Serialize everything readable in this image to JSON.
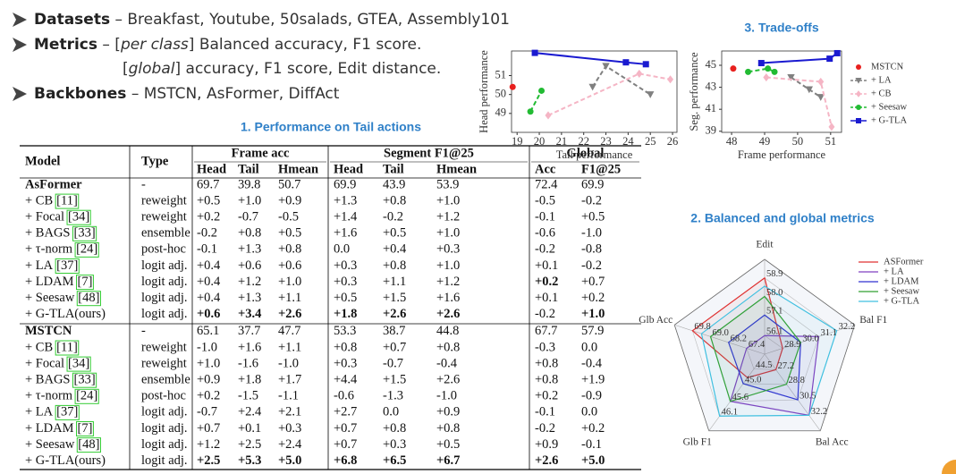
{
  "bullets": [
    {
      "bullet": true,
      "parts": [
        {
          "text": "Datasets",
          "style": "bold"
        },
        {
          "text": " – Breakfast, Youtube, 50salads, GTEA, Assembly101"
        }
      ]
    },
    {
      "bullet": true,
      "parts": [
        {
          "text": "Metrics",
          "style": "bold"
        },
        {
          "text": " – ["
        },
        {
          "text": "per class",
          "style": "italic"
        },
        {
          "text": "] Balanced accuracy, F1 score."
        }
      ]
    },
    {
      "bullet": false,
      "parts": [
        {
          "text": "["
        },
        {
          "text": "global",
          "style": "italic"
        },
        {
          "text": "] accuracy, F1 score, Edit distance."
        }
      ]
    },
    {
      "bullet": true,
      "parts": [
        {
          "text": "Backbones",
          "style": "bold"
        },
        {
          "text": " – MSTCN, AsFormer, DiffAct"
        }
      ]
    }
  ],
  "table": {
    "title": "1. Performance on Tail actions",
    "header": [
      "Model",
      "Type"
    ],
    "groups": [
      "Frame acc",
      "Segment F1@25",
      "Global"
    ],
    "subheader": [
      "Head",
      "Tail",
      "Hmean",
      "Head",
      "Tail",
      "Hmean",
      "Acc",
      "F1@25"
    ],
    "muted_columns": [
      6,
      7
    ],
    "rows": [
      {
        "model": "AsFormer",
        "model_bold": true,
        "type": "-",
        "values": [
          "69.7",
          "39.8",
          "50.7",
          "69.9",
          "43.9",
          "53.9",
          "72.4",
          "69.9"
        ]
      },
      {
        "model": "+ CB",
        "ref": "[11]",
        "type": "reweight",
        "values": [
          "+0.5",
          "+1.0",
          "+0.9",
          "+1.3",
          "+0.8",
          "+1.0",
          "-0.5",
          "-0.2"
        ]
      },
      {
        "model": "+ Focal",
        "ref": "[34]",
        "type": "reweight",
        "values": [
          "+0.2",
          "-0.7",
          "-0.5",
          "+1.4",
          "-0.2",
          "+1.2",
          "-0.1",
          "+0.5"
        ]
      },
      {
        "model": "+ BAGS",
        "ref": "[33]",
        "type": "ensemble",
        "values": [
          "-0.2",
          "+0.8",
          "+0.5",
          "+1.6",
          "+0.5",
          "+1.0",
          "-0.6",
          "-1.0"
        ]
      },
      {
        "model": "+ τ-norm",
        "ref": "[24]",
        "type": "post-hoc",
        "values": [
          "-0.1",
          "+1.3",
          "+0.8",
          "0.0",
          "+0.4",
          "+0.3",
          "-0.2",
          "-0.8"
        ]
      },
      {
        "model": "+ LA",
        "ref": "[37]",
        "type": "logit adj.",
        "values": [
          "+0.4",
          "+0.6",
          "+0.6",
          "+0.3",
          "+0.8",
          "+1.0",
          "+0.1",
          "-0.2"
        ]
      },
      {
        "model": "+ LDAM",
        "ref": "[7]",
        "type": "logit adj.",
        "values": [
          "+0.4",
          "+1.2",
          "+1.0",
          "+0.3",
          "+1.1",
          "+1.2",
          "+0.2",
          "+0.7"
        ],
        "bold": [
          6
        ]
      },
      {
        "model": "+ Seesaw",
        "ref": "[48]",
        "type": "logit adj.",
        "values": [
          "+0.4",
          "+1.3",
          "+1.1",
          "+0.5",
          "+1.5",
          "+1.6",
          "+0.1",
          "+0.2"
        ]
      },
      {
        "model": "+ G-TLA(ours)",
        "type": "logit adj.",
        "values": [
          "+0.6",
          "+3.4",
          "+2.6",
          "+1.8",
          "+2.6",
          "+2.6",
          "-0.2",
          "+1.0"
        ],
        "bold": [
          0,
          1,
          2,
          3,
          4,
          5,
          7
        ]
      },
      {
        "model": "MSTCN",
        "model_bold": true,
        "type": "-",
        "values": [
          "65.1",
          "37.7",
          "47.7",
          "53.3",
          "38.7",
          "44.8",
          "67.7",
          "57.9"
        ]
      },
      {
        "model": "+ CB",
        "ref": "[11]",
        "type": "reweight",
        "values": [
          "-1.0",
          "+1.6",
          "+1.1",
          "+0.8",
          "+0.7",
          "+0.8",
          "-0.3",
          "0.0"
        ]
      },
      {
        "model": "+ Focal",
        "ref": "[34]",
        "type": "reweight",
        "values": [
          "+1.0",
          "-1.6",
          "-1.0",
          "+0.3",
          "-0.7",
          "-0.4",
          "+0.8",
          "-0.4"
        ]
      },
      {
        "model": "+ BAGS",
        "ref": "[33]",
        "type": "ensemble",
        "values": [
          "+0.9",
          "+1.8",
          "+1.7",
          "+4.4",
          "+1.5",
          "+2.6",
          "+0.8",
          "+1.9"
        ]
      },
      {
        "model": "+ τ-norm",
        "ref": "[24]",
        "type": "post-hoc",
        "values": [
          "+0.2",
          "-1.5",
          "-1.1",
          "-0.6",
          "-1.3",
          "-1.0",
          "+0.2",
          "-0.9"
        ]
      },
      {
        "model": "+ LA",
        "ref": "[37]",
        "type": "logit adj.",
        "values": [
          "-0.7",
          "+2.4",
          "+2.1",
          "+2.7",
          "0.0",
          "+0.9",
          "-0.1",
          "0.0"
        ]
      },
      {
        "model": "+ LDAM",
        "ref": "[7]",
        "type": "logit adj.",
        "values": [
          "+0.7",
          "+0.1",
          "+0.3",
          "+0.7",
          "+0.8",
          "+0.8",
          "-0.2",
          "+0.2"
        ]
      },
      {
        "model": "+ Seesaw",
        "ref": "[48]",
        "type": "logit adj.",
        "values": [
          "+1.2",
          "+2.5",
          "+2.4",
          "+0.7",
          "+0.3",
          "+0.5",
          "+0.9",
          "-0.1"
        ]
      },
      {
        "model": "+ G-TLA(ours)",
        "type": "logit adj.",
        "values": [
          "+2.5",
          "+5.3",
          "+5.0",
          "+6.8",
          "+6.5",
          "+6.7",
          "+2.6",
          "+5.0"
        ],
        "bold": [
          0,
          1,
          2,
          3,
          4,
          5,
          6,
          7
        ]
      }
    ]
  },
  "chart_data": [
    {
      "type": "line",
      "xlabel": "Tail performance",
      "ylabel": "Head performance",
      "xlim": [
        18.75,
        26.2
      ],
      "ylim": [
        48,
        52.3
      ],
      "xticks": [
        19,
        20,
        21,
        22,
        23,
        24,
        25,
        26
      ],
      "yticks": [
        49,
        50,
        51
      ],
      "series": [
        {
          "color": "#e8201e",
          "marker": "circle",
          "line": false,
          "x": [
            18.8
          ],
          "values": [
            50.4
          ]
        },
        {
          "color": "#808080",
          "marker": "triangle-down",
          "dash": true,
          "x": [
            22.4,
            23.0,
            25.0
          ],
          "values": [
            50.4,
            51.5,
            50.0
          ]
        },
        {
          "color": "#f5b5c5",
          "marker": "diamond",
          "dash": true,
          "x": [
            20.4,
            24.5,
            25.9
          ],
          "values": [
            48.9,
            51.1,
            50.8
          ]
        },
        {
          "color": "#22bb33",
          "marker": "circle",
          "dash": true,
          "x": [
            19.6,
            20.1
          ],
          "values": [
            49.1,
            50.2
          ]
        },
        {
          "color": "#1a1ad0",
          "marker": "square",
          "dash": false,
          "x": [
            19.8,
            23.9,
            24.8
          ],
          "values": [
            52.2,
            51.7,
            51.6
          ]
        }
      ]
    },
    {
      "type": "line",
      "title": "3. Trade-offs",
      "xlabel": "Frame performance",
      "ylabel": "Seg. performance",
      "xlim": [
        47.7,
        51.33
      ],
      "ylim": [
        38.9,
        46.3
      ],
      "xticks": [
        48,
        49,
        50,
        51
      ],
      "yticks": [
        39,
        41,
        43,
        45
      ],
      "legend": "right",
      "series": [
        {
          "name": "MSTCN",
          "color": "#e8201e",
          "marker": "circle",
          "line": false,
          "x": [
            48.05
          ],
          "values": [
            44.7
          ]
        },
        {
          "name": "+ LA",
          "color": "#808080",
          "marker": "triangle-down",
          "dash": true,
          "x": [
            49.8,
            50.35,
            50.7
          ],
          "values": [
            43.9,
            42.8,
            42.1
          ]
        },
        {
          "name": "+ CB",
          "color": "#f5b5c5",
          "marker": "diamond",
          "dash": true,
          "x": [
            49.05,
            50.7,
            51.03
          ],
          "values": [
            43.9,
            43.5,
            39.4
          ]
        },
        {
          "name": "+ Seesaw",
          "color": "#22bb33",
          "marker": "circle",
          "dash": true,
          "x": [
            48.5,
            49.1,
            49.3
          ],
          "values": [
            44.4,
            44.7,
            44.4
          ]
        },
        {
          "name": "+ G-TLA",
          "color": "#1a1ad0",
          "marker": "square",
          "dash": false,
          "x": [
            48.9,
            50.97,
            51.2
          ],
          "values": [
            45.2,
            45.6,
            46.1
          ]
        }
      ]
    },
    {
      "type": "radar",
      "title": "2. Balanced and global metrics",
      "axes": [
        "Edit",
        "Bal F1",
        "Bal Acc",
        "Glb F1",
        "Glb Acc"
      ],
      "axis_lims": [
        [
          55.2,
          59.8
        ],
        [
          27.8,
          33.3
        ],
        [
          25.5,
          33.9
        ],
        [
          44.0,
          46.6
        ],
        [
          66.6,
          70.6
        ]
      ],
      "axis_ticks": [
        [
          56.1,
          57.1,
          {
            "value": 58,
            "label": "58.0"
          },
          58.9
        ],
        [
          28.9,
          {
            "value": 30,
            "label": "30.0"
          },
          31.1,
          32.2
        ],
        [
          27.2,
          28.8,
          30.5,
          32.2
        ],
        [
          44.5,
          {
            "value": 45,
            "label": "45.0"
          },
          45.6,
          46.1
        ],
        [
          67.4,
          68.2,
          {
            "value": 69,
            "label": "69.0"
          },
          69.8
        ]
      ],
      "series": [
        {
          "name": "ASFormer",
          "color": "#e03030",
          "values": [
            58.9,
            28.9,
            27.2,
            44.8,
            69.8
          ]
        },
        {
          "name": "+ LA",
          "color": "#8040c0",
          "values": [
            56.1,
            31.1,
            32.2,
            45.6,
            67.4
          ]
        },
        {
          "name": "+ LDAM",
          "color": "#3030d0",
          "values": [
            57.1,
            30.0,
            30.5,
            45.0,
            68.2
          ]
        },
        {
          "name": "+ Seesaw",
          "color": "#30a030",
          "values": [
            58.0,
            30.0,
            28.8,
            45.6,
            69.0
          ]
        },
        {
          "name": "+ G-TLA",
          "color": "#40c0e0",
          "values": [
            58.5,
            32.2,
            32.2,
            46.1,
            69.4
          ]
        }
      ]
    }
  ]
}
